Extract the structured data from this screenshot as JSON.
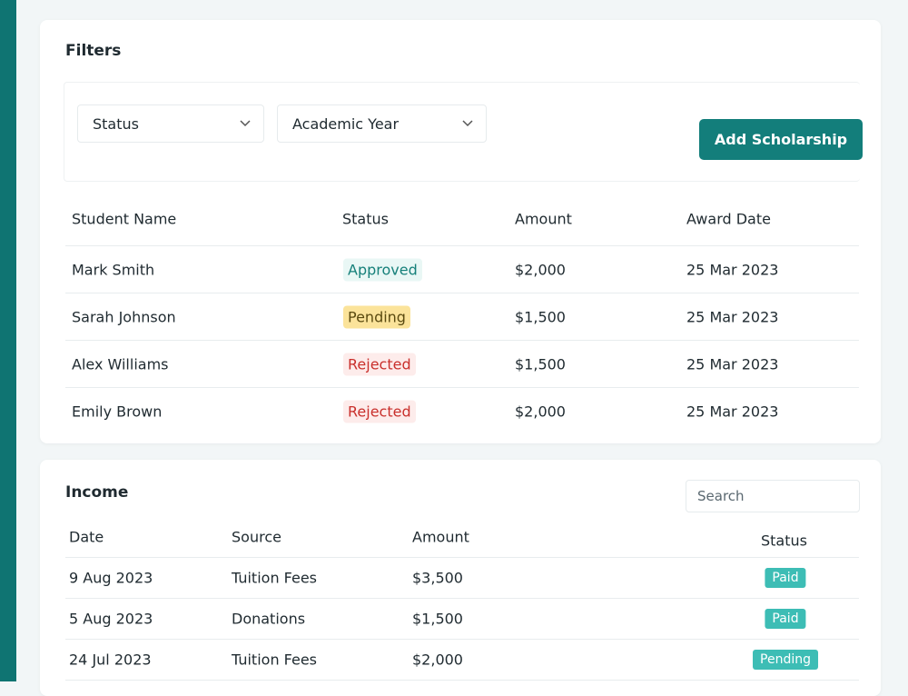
{
  "filters": {
    "title": "Filters",
    "selects": [
      "Status",
      "Academic Year"
    ],
    "button": "Add Scholarship"
  },
  "scholarships": {
    "headers": [
      "Student Name",
      "Status",
      "Amount",
      "Award Date"
    ],
    "rows": [
      {
        "name": "Mark Smith",
        "status": {
          "text": "Approved",
          "color": "#16807a",
          "background": "#e9f7f5"
        },
        "amount": "$2,000",
        "date": "25 Mar 2023"
      },
      {
        "name": "Sarah Johnson",
        "status": {
          "text": "Pending",
          "color": "#5a4a10",
          "background": "#fbe39a"
        },
        "amount": "$1,500",
        "date": "25 Mar 2023"
      },
      {
        "name": "Alex Williams",
        "status": {
          "text": "Rejected",
          "color": "#c9302c",
          "background": "#fdeceb"
        },
        "amount": "$1,500",
        "date": "25 Mar 2023"
      },
      {
        "name": "Emily Brown",
        "status": {
          "text": "Rejected",
          "color": "#c9302c",
          "background": "#fdeceb"
        },
        "amount": "$2,000",
        "date": "25 Mar 2023"
      }
    ]
  },
  "income": {
    "title": "Income",
    "search_placeholder": "Search",
    "headers": [
      "Date",
      "Source",
      "Amount",
      "Status"
    ],
    "rows": [
      {
        "date": "9 Aug 2023",
        "source": "Tuition Fees",
        "amount": "$3,500",
        "status": "Paid"
      },
      {
        "date": "5 Aug 2023",
        "source": "Donations",
        "amount": "$1,500",
        "status": "Paid"
      },
      {
        "date": "24 Jul 2023",
        "source": "Tuition Fees",
        "amount": "$2,000",
        "status": "Pending"
      }
    ]
  }
}
